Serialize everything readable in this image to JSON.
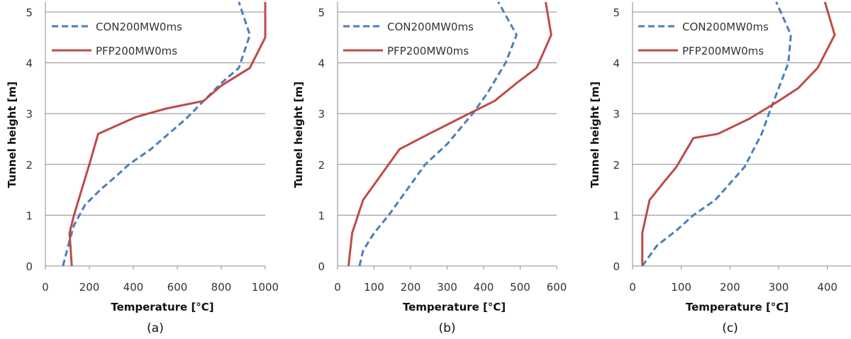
{
  "chart_data": [
    {
      "type": "line",
      "caption": "(a)",
      "xlabel": "Temperature [°C]",
      "ylabel": "Tunnel height [m]",
      "xlim": [
        0,
        1000
      ],
      "ylim": [
        0,
        5.2
      ],
      "xticks": [
        0,
        200,
        400,
        600,
        800,
        1000
      ],
      "yticks": [
        0,
        1,
        2,
        3,
        4,
        5
      ],
      "grid": "horizontal",
      "legend": "top-left",
      "series": [
        {
          "name": "CON200MW0ms",
          "style": "dashed",
          "color": "#4a7ebb",
          "points": [
            [
              80,
              0
            ],
            [
              110,
              0.5
            ],
            [
              130,
              0.8
            ],
            [
              180,
              1.2
            ],
            [
              250,
              1.5
            ],
            [
              330,
              1.8
            ],
            [
              380,
              2.0
            ],
            [
              480,
              2.3
            ],
            [
              560,
              2.6
            ],
            [
              640,
              2.9
            ],
            [
              720,
              3.25
            ],
            [
              800,
              3.6
            ],
            [
              880,
              3.9
            ],
            [
              930,
              4.55
            ],
            [
              880,
              5.2
            ]
          ]
        },
        {
          "name": "PFP200MW0ms",
          "style": "solid",
          "color": "#be4b48",
          "points": [
            [
              120,
              0
            ],
            [
              110,
              0.65
            ],
            [
              130,
              1.0
            ],
            [
              200,
              2.0
            ],
            [
              240,
              2.6
            ],
            [
              410,
              2.93
            ],
            [
              550,
              3.1
            ],
            [
              720,
              3.25
            ],
            [
              800,
              3.55
            ],
            [
              930,
              3.9
            ],
            [
              1000,
              4.5
            ],
            [
              1000,
              5.2
            ]
          ]
        }
      ]
    },
    {
      "type": "line",
      "caption": "(b)",
      "xlabel": "Temperature [°C]",
      "ylabel": "Tunnel height [m]",
      "xlim": [
        0,
        600
      ],
      "ylim": [
        0,
        5.2
      ],
      "xticks": [
        0,
        100,
        200,
        300,
        400,
        500,
        600
      ],
      "yticks": [
        0,
        1,
        2,
        3,
        4,
        5
      ],
      "grid": "horizontal",
      "legend": "top-left",
      "series": [
        {
          "name": "CON200MW0ms",
          "style": "dashed",
          "color": "#4a7ebb",
          "points": [
            [
              60,
              0
            ],
            [
              70,
              0.3
            ],
            [
              100,
              0.65
            ],
            [
              140,
              1.0
            ],
            [
              200,
              1.6
            ],
            [
              240,
              2.0
            ],
            [
              300,
              2.4
            ],
            [
              370,
              3.0
            ],
            [
              410,
              3.4
            ],
            [
              460,
              4.0
            ],
            [
              490,
              4.55
            ],
            [
              440,
              5.2
            ]
          ]
        },
        {
          "name": "PFP200MW0ms",
          "style": "solid",
          "color": "#be4b48",
          "points": [
            [
              30,
              0
            ],
            [
              40,
              0.65
            ],
            [
              70,
              1.3
            ],
            [
              140,
              2.0
            ],
            [
              170,
              2.3
            ],
            [
              250,
              2.6
            ],
            [
              360,
              3.0
            ],
            [
              430,
              3.25
            ],
            [
              490,
              3.6
            ],
            [
              545,
              3.9
            ],
            [
              585,
              4.55
            ],
            [
              570,
              5.2
            ]
          ]
        }
      ]
    },
    {
      "type": "line",
      "caption": "(c)",
      "xlabel": "Temperature [°C]",
      "ylabel": "Tunnel height [m]",
      "xlim": [
        0,
        450
      ],
      "ylim": [
        0,
        5.2
      ],
      "xticks": [
        0,
        100,
        200,
        300,
        400
      ],
      "yticks": [
        0,
        1,
        2,
        3,
        4,
        5
      ],
      "grid": "horizontal",
      "legend": "top-left",
      "series": [
        {
          "name": "CON200MW0ms",
          "style": "dashed",
          "color": "#4a7ebb",
          "points": [
            [
              20,
              0
            ],
            [
              50,
              0.4
            ],
            [
              90,
              0.7
            ],
            [
              125,
              1.0
            ],
            [
              170,
              1.3
            ],
            [
              230,
              1.95
            ],
            [
              265,
              2.6
            ],
            [
              280,
              3.0
            ],
            [
              300,
              3.5
            ],
            [
              320,
              4.0
            ],
            [
              325,
              4.55
            ],
            [
              295,
              5.2
            ]
          ]
        },
        {
          "name": "PFP200MW0ms",
          "style": "solid",
          "color": "#be4b48",
          "points": [
            [
              20,
              0
            ],
            [
              20,
              0.65
            ],
            [
              35,
              1.3
            ],
            [
              60,
              1.6
            ],
            [
              90,
              1.95
            ],
            [
              125,
              2.52
            ],
            [
              175,
              2.6
            ],
            [
              240,
              2.9
            ],
            [
              300,
              3.25
            ],
            [
              340,
              3.5
            ],
            [
              380,
              3.9
            ],
            [
              415,
              4.55
            ],
            [
              395,
              5.2
            ]
          ]
        }
      ]
    }
  ]
}
